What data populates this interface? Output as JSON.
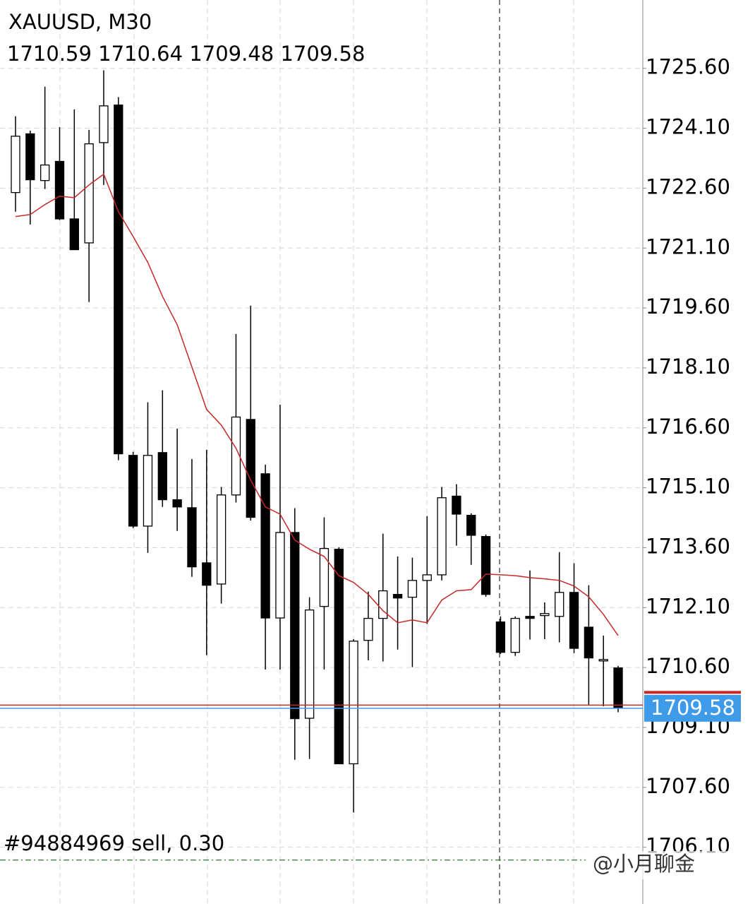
{
  "chart_data": {
    "type": "candlestick",
    "title": "XAUUSD, M30",
    "open": [
      1722.49,
      1723.96,
      1722.79,
      1723.27,
      1721.83,
      1721.23,
      1723.74,
      1724.68,
      1715.91,
      1714.14,
      1715.98,
      1714.8,
      1714.6,
      1713.22,
      1712.69,
      1714.92,
      1716.81,
      1715.45,
      1711.84,
      1713.98,
      1709.33,
      1712.13,
      1713.56,
      1708.19,
      1711.28,
      1711.83,
      1712.43,
      1712.36,
      1712.78,
      1712.92,
      1714.89,
      1714.41,
      1713.88,
      1711.74,
      1710.98,
      1711.88,
      1711.9,
      1711.88,
      1712.48,
      1711.61,
      1710.8,
      1710.59
    ],
    "high": [
      1724.4,
      1724.04,
      1725.14,
      1724.13,
      1724.57,
      1724.06,
      1725.55,
      1724.88,
      1716.0,
      1717.24,
      1717.54,
      1716.58,
      1715.82,
      1716.05,
      1715.12,
      1718.95,
      1719.66,
      1715.68,
      1717.18,
      1714.59,
      1712.36,
      1714.36,
      1713.61,
      1711.31,
      1712.5,
      1713.95,
      1713.38,
      1713.35,
      1714.39,
      1715.12,
      1715.19,
      1714.46,
      1713.93,
      1711.88,
      1711.88,
      1713.03,
      1712.23,
      1713.49,
      1713.21,
      1712.66,
      1711.4,
      1710.64
    ],
    "low": [
      1722.01,
      1721.69,
      1722.58,
      1721.8,
      1721.06,
      1719.75,
      1722.68,
      1715.79,
      1714.09,
      1713.47,
      1714.62,
      1714.02,
      1712.87,
      1710.91,
      1712.2,
      1714.73,
      1714.28,
      1710.55,
      1710.55,
      1708.29,
      1708.31,
      1710.55,
      1708.19,
      1706.97,
      1710.78,
      1710.75,
      1711.05,
      1710.61,
      1711.69,
      1712.78,
      1713.65,
      1713.17,
      1712.37,
      1710.94,
      1710.89,
      1711.3,
      1711.31,
      1711.23,
      1710.96,
      1709.67,
      1709.63,
      1709.48
    ],
    "close": [
      1723.9,
      1722.81,
      1723.18,
      1721.83,
      1721.06,
      1723.71,
      1724.66,
      1715.95,
      1714.14,
      1715.91,
      1714.8,
      1714.62,
      1713.12,
      1712.66,
      1714.92,
      1716.87,
      1714.36,
      1711.84,
      1713.98,
      1709.32,
      1712.04,
      1713.58,
      1708.19,
      1711.26,
      1711.83,
      1712.52,
      1712.34,
      1712.78,
      1712.92,
      1714.85,
      1714.44,
      1713.91,
      1712.43,
      1710.98,
      1711.83,
      1711.83,
      1711.95,
      1712.48,
      1711.08,
      1710.84,
      1710.8,
      1709.58
    ],
    "ma": {
      "color": "#c62828",
      "values": [
        1721.89,
        1721.94,
        1722.19,
        1722.4,
        1722.36,
        1722.68,
        1722.95,
        1722.01,
        1721.39,
        1720.74,
        1719.89,
        1719.18,
        1718.12,
        1717.06,
        1716.67,
        1716.09,
        1715.29,
        1714.62,
        1714.44,
        1713.79,
        1713.56,
        1713.38,
        1712.9,
        1712.73,
        1712.43,
        1712.02,
        1711.72,
        1711.79,
        1711.72,
        1712.29,
        1712.52,
        1712.55,
        1712.94,
        1712.92,
        1712.9,
        1712.85,
        1712.82,
        1712.78,
        1712.64,
        1712.37,
        1711.93,
        1711.4
      ]
    },
    "bull_color": "#ffffff",
    "bear_color": "#000000",
    "ask": 1709.66,
    "ask_color": "#c62828",
    "bid_color": "#3d9be9",
    "order": {
      "label": "#94884969 sell, 0.30",
      "price": 1705.78,
      "color": "#2e7d32"
    },
    "ylim": [
      1704.68,
      1727.31
    ],
    "yticks": [
      {
        "value": 1725.6,
        "label": "1725.60"
      },
      {
        "value": 1724.1,
        "label": "1724.10"
      },
      {
        "value": 1722.6,
        "label": "1722.60"
      },
      {
        "value": 1721.1,
        "label": "1721.10"
      },
      {
        "value": 1719.6,
        "label": "1719.60"
      },
      {
        "value": 1718.1,
        "label": "1718.10"
      },
      {
        "value": 1716.6,
        "label": "1716.60"
      },
      {
        "value": 1715.1,
        "label": "1715.10"
      },
      {
        "value": 1713.6,
        "label": "1713.60"
      },
      {
        "value": 1712.1,
        "label": "1712.10"
      },
      {
        "value": 1710.6,
        "label": "1710.60"
      },
      {
        "value": 1709.1,
        "label": "1709.10"
      },
      {
        "value": 1707.6,
        "label": "1707.60"
      },
      {
        "value": 1706.1,
        "label": "1706.10"
      }
    ],
    "grid": true,
    "watermark": "@小月聊金"
  }
}
